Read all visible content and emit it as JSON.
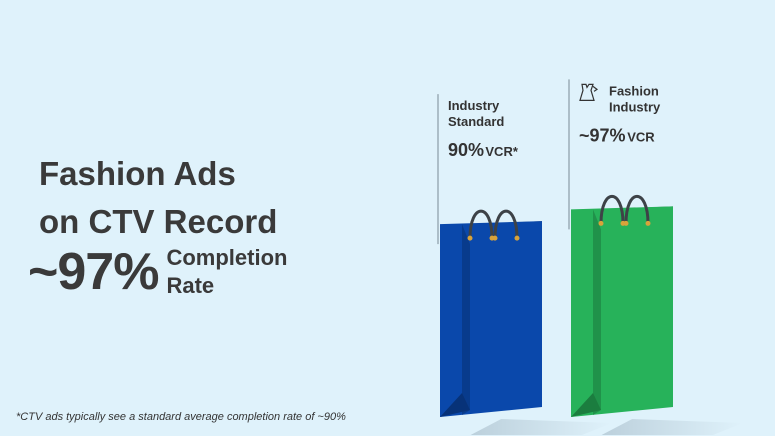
{
  "headline": {
    "line1": "Fashion Ads",
    "line2": "on CTV Record",
    "stat": "~97%",
    "stat_label_line1": "Completion",
    "stat_label_line2": "Rate"
  },
  "footnote": "*CTV ads typically see a standard average completion rate of ~90%",
  "colors": {
    "background": "#dff2fb",
    "industry_bag": "#0a48ab",
    "fashion_bag": "#27b25a"
  },
  "chart_data": {
    "type": "bar",
    "categories": [
      "Industry Standard",
      "Fashion Industry"
    ],
    "values": [
      90,
      97
    ],
    "unit": "% VCR",
    "bars": [
      {
        "name_lines": [
          "Industry",
          "Standard"
        ],
        "value_text": "90%",
        "unit_text": "VCR*",
        "color": "#0a48ab",
        "icon": ""
      },
      {
        "name_lines": [
          "Fashion",
          "Industry"
        ],
        "value_text": "~97%",
        "unit_text": "VCR",
        "color": "#27b25a",
        "icon": "dress-hanger-icon"
      }
    ]
  }
}
